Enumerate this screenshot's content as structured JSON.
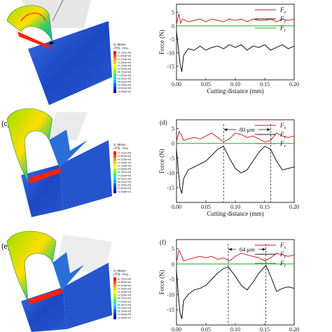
{
  "panels": [
    {
      "label": "",
      "sim_label": ""
    },
    {
      "label": "(c)",
      "sim_label": "(d)"
    },
    {
      "label": "(e)",
      "sim_label": "(f)"
    }
  ],
  "legend_box": {
    "title": "S, Mises",
    "subtitle": "(平均: 75%)",
    "values": [
      "+2.731e+04",
      "+1.500e+04",
      "+1.375e+04",
      "+1.250e+04",
      "+1.125e+04",
      "+1.000e+04",
      "+8.751e+03",
      "+7.510e+03",
      "+6.261e+03",
      "+5.011e+03",
      "+3.764e+03",
      "+2.516e+03",
      "+1.933e+01"
    ],
    "colors": [
      "#ff0000",
      "#ff4d00",
      "#ff9900",
      "#ffcc00",
      "#ffff00",
      "#bfff00",
      "#66ff33",
      "#00ff99",
      "#00e6e6",
      "#00b3ff",
      "#0066ff",
      "#0033cc",
      "#0000aa"
    ]
  },
  "colors": {
    "Fx": "#cc2222",
    "Fy": "#111111",
    "Fz": "#22aa22",
    "stress_hot": "#ff2200",
    "stress_mid": "#22cc66",
    "stress_cold": "#1f4fd8"
  },
  "chart_data": [
    {
      "type": "line",
      "panel": "top",
      "xlabel": "Cutting distance (mm)",
      "ylabel": "Force (N)",
      "xlim": [
        0,
        0.2
      ],
      "ylim": [
        -20,
        8
      ],
      "xticks": [
        "0.00",
        "0.05",
        "0.10",
        "0.15",
        "0.20"
      ],
      "yticks": [
        "5",
        "0",
        "-5",
        "-10",
        "-15"
      ],
      "legend": [
        "F_x",
        "F_y",
        "F_z"
      ],
      "legend_position": "top-right",
      "series": [
        {
          "name": "Fx",
          "x": [
            0,
            0.004,
            0.007,
            0.01,
            0.015,
            0.02,
            0.03,
            0.04,
            0.05,
            0.06,
            0.07,
            0.08,
            0.09,
            0.1,
            0.11,
            0.12,
            0.13,
            0.14,
            0.15,
            0.16,
            0.17,
            0.18,
            0.19,
            0.2
          ],
          "y": [
            0.5,
            4.5,
            1,
            2.5,
            2,
            1.5,
            2,
            2.5,
            1.5,
            2.5,
            2,
            1.5,
            2.5,
            2,
            2.5,
            1.5,
            2.5,
            2,
            2,
            2.5,
            1.5,
            2.5,
            2,
            2.5
          ]
        },
        {
          "name": "Fy",
          "x": [
            0,
            0.003,
            0.006,
            0.009,
            0.012,
            0.02,
            0.03,
            0.04,
            0.05,
            0.06,
            0.07,
            0.08,
            0.09,
            0.1,
            0.11,
            0.12,
            0.13,
            0.14,
            0.15,
            0.16,
            0.17,
            0.18,
            0.19,
            0.2
          ],
          "y": [
            -2,
            -8,
            -14,
            -17,
            -11,
            -8.5,
            -9,
            -7.5,
            -9,
            -8,
            -7.5,
            -8.5,
            -7,
            -8,
            -7,
            -9,
            -7.5,
            -8,
            -7,
            -9,
            -8,
            -7,
            -8.5,
            -7.5
          ]
        },
        {
          "name": "Fz",
          "x": [
            0,
            0.2
          ],
          "y": [
            0,
            0
          ]
        }
      ]
    },
    {
      "type": "line",
      "panel": "(d)",
      "xlabel": "Cutting distance (mm)",
      "ylabel": "Force (N)",
      "xlim": [
        0,
        0.2
      ],
      "ylim": [
        -20,
        8
      ],
      "xticks": [
        "0.00",
        "0.05",
        "0.10",
        "0.15",
        "0.20"
      ],
      "yticks": [
        "5",
        "0",
        "-5",
        "-10",
        "-15"
      ],
      "legend": [
        "F_x",
        "F_y",
        "F_z"
      ],
      "legend_position": "top-right",
      "annotation": {
        "text": "80 μm",
        "x1": 0.08,
        "x2": 0.16
      },
      "series": [
        {
          "name": "Fx",
          "x": [
            0,
            0.004,
            0.008,
            0.012,
            0.02,
            0.03,
            0.04,
            0.05,
            0.06,
            0.07,
            0.08,
            0.09,
            0.1,
            0.11,
            0.12,
            0.13,
            0.14,
            0.15,
            0.16,
            0.17,
            0.18,
            0.19,
            0.2
          ],
          "y": [
            0.5,
            4,
            3,
            1,
            1.5,
            2,
            1.5,
            2.5,
            3.5,
            2,
            0.5,
            1.5,
            3.5,
            3,
            2,
            2.5,
            1.5,
            0.5,
            1,
            3.5,
            2.5,
            2,
            2.5
          ]
        },
        {
          "name": "Fy",
          "x": [
            0,
            0.003,
            0.006,
            0.009,
            0.012,
            0.02,
            0.03,
            0.04,
            0.05,
            0.06,
            0.07,
            0.08,
            0.09,
            0.1,
            0.11,
            0.12,
            0.13,
            0.14,
            0.15,
            0.16,
            0.17,
            0.18,
            0.19,
            0.2
          ],
          "y": [
            -2,
            -9,
            -15,
            -17,
            -12,
            -9,
            -8,
            -7,
            -6,
            -4,
            -2,
            -1,
            -5,
            -8.5,
            -10,
            -9,
            -6,
            -3,
            -1,
            -2,
            -6,
            -9,
            -8.5,
            -8
          ]
        },
        {
          "name": "Fz",
          "x": [
            0,
            0.2
          ],
          "y": [
            0,
            0
          ]
        }
      ]
    },
    {
      "type": "line",
      "panel": "(f)",
      "xlabel": "",
      "ylabel": "Force (N)",
      "xlim": [
        0,
        0.2
      ],
      "ylim": [
        -20,
        8
      ],
      "xticks": [
        "0.00",
        "0.05",
        "0.10",
        "0.15",
        "0.20"
      ],
      "yticks": [
        "5",
        "0",
        "-5",
        "-10",
        "-15"
      ],
      "legend": [
        "F_x",
        "F_y",
        "F_z"
      ],
      "legend_position": "top-right",
      "annotation": {
        "text": "64 μm",
        "x1": 0.088,
        "x2": 0.152
      },
      "series": [
        {
          "name": "Fx",
          "x": [
            0,
            0.004,
            0.008,
            0.012,
            0.02,
            0.03,
            0.04,
            0.05,
            0.06,
            0.07,
            0.08,
            0.09,
            0.1,
            0.11,
            0.12,
            0.13,
            0.14,
            0.15,
            0.16,
            0.17,
            0.18,
            0.19,
            0.2
          ],
          "y": [
            0.5,
            4.5,
            3,
            1,
            1.5,
            2,
            2.5,
            2,
            2.5,
            1.5,
            2,
            1,
            2.5,
            3.5,
            3,
            2.5,
            2,
            1,
            2,
            3.5,
            3,
            2.5,
            3
          ]
        },
        {
          "name": "Fy",
          "x": [
            0,
            0.003,
            0.006,
            0.009,
            0.012,
            0.02,
            0.03,
            0.04,
            0.05,
            0.06,
            0.07,
            0.08,
            0.088,
            0.1,
            0.11,
            0.12,
            0.13,
            0.14,
            0.152,
            0.16,
            0.17,
            0.18,
            0.19,
            0.2
          ],
          "y": [
            -2,
            -10,
            -16,
            -18,
            -12,
            -10,
            -8.5,
            -8,
            -7,
            -5,
            -3,
            -1.5,
            -1,
            -4,
            -7,
            -8.5,
            -6,
            -3,
            -0.5,
            -4,
            -9,
            -8,
            -7.5,
            -8
          ]
        },
        {
          "name": "Fz",
          "x": [
            0,
            0.2
          ],
          "y": [
            0,
            0
          ]
        }
      ]
    }
  ]
}
